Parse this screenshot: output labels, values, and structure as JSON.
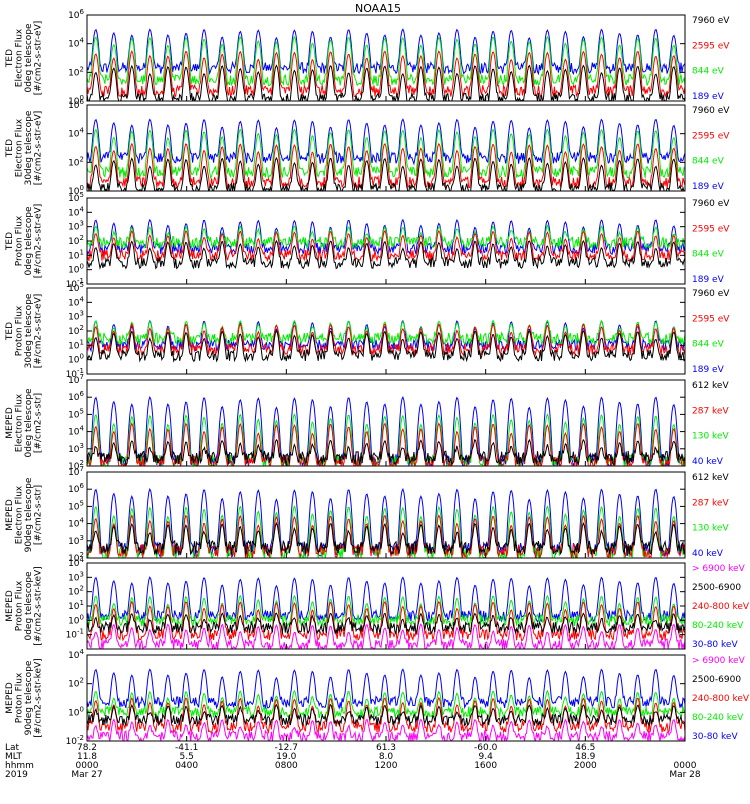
{
  "title": "NOAA15",
  "colors": {
    "black": "#000000",
    "blue": "#0000ff",
    "red": "#ff0000",
    "green": "#00ee00",
    "magenta": "#ff00ff"
  },
  "chart_data": [
    {
      "type": "line",
      "ylabel_lines": [
        "TED",
        "Electron Flux",
        "0deg telescope",
        "[#/cm2-s-str-eV]"
      ],
      "y_scale": "log",
      "ylim": [
        1,
        1000000
      ],
      "yticks": [
        {
          "value": 1,
          "label": "10^0"
        },
        {
          "value": 100,
          "label": "10^2"
        },
        {
          "value": 10000,
          "label": "10^4"
        },
        {
          "value": 1000000,
          "label": "10^6"
        }
      ],
      "legend": [
        {
          "name": "7960 eV",
          "color": "#000000"
        },
        {
          "name": "2595 eV",
          "color": "#ff0000"
        },
        {
          "name": "844 eV",
          "color": "#00ee00"
        },
        {
          "name": "189 eV",
          "color": "#0000ff"
        }
      ],
      "series": [
        {
          "name": "189 eV",
          "color": "#0000ff",
          "baseline": 200,
          "peak": 100000
        },
        {
          "name": "844 eV",
          "color": "#00ee00",
          "baseline": 30,
          "peak": 30000
        },
        {
          "name": "2595 eV",
          "color": "#ff0000",
          "baseline": 5,
          "peak": 3000
        },
        {
          "name": "7960 eV",
          "color": "#000000",
          "baseline": 1.5,
          "peak": 300
        }
      ]
    },
    {
      "type": "line",
      "ylabel_lines": [
        "TED",
        "Electron Flux",
        "30deg telescope",
        "[#/cm2-s-str-eV]"
      ],
      "y_scale": "log",
      "ylim": [
        1,
        1000000
      ],
      "yticks": [
        {
          "value": 1,
          "label": "10^0"
        },
        {
          "value": 100,
          "label": "10^2"
        },
        {
          "value": 10000,
          "label": "10^4"
        },
        {
          "value": 1000000,
          "label": "10^6"
        }
      ],
      "legend": [
        {
          "name": "7960 eV",
          "color": "#000000"
        },
        {
          "name": "2595 eV",
          "color": "#ff0000"
        },
        {
          "name": "844 eV",
          "color": "#00ee00"
        },
        {
          "name": "189 eV",
          "color": "#0000ff"
        }
      ],
      "series": [
        {
          "name": "189 eV",
          "color": "#0000ff",
          "baseline": 200,
          "peak": 100000
        },
        {
          "name": "844 eV",
          "color": "#00ee00",
          "baseline": 20,
          "peak": 20000
        },
        {
          "name": "2595 eV",
          "color": "#ff0000",
          "baseline": 4,
          "peak": 2000
        },
        {
          "name": "7960 eV",
          "color": "#000000",
          "baseline": 1.5,
          "peak": 200
        }
      ]
    },
    {
      "type": "line",
      "ylabel_lines": [
        "TED",
        "Proton Flux",
        "0deg telescope",
        "[#/cm2-s-str-eV]"
      ],
      "y_scale": "log",
      "ylim": [
        0.1,
        100000
      ],
      "yticks": [
        {
          "value": 0.1,
          "label": "10^-1"
        },
        {
          "value": 1,
          "label": "10^0"
        },
        {
          "value": 10,
          "label": "10^1"
        },
        {
          "value": 100,
          "label": "10^2"
        },
        {
          "value": 1000,
          "label": "10^3"
        },
        {
          "value": 10000,
          "label": "10^4"
        },
        {
          "value": 100000,
          "label": "10^5"
        }
      ],
      "legend": [
        {
          "name": "7960 eV",
          "color": "#000000"
        },
        {
          "name": "2595 eV",
          "color": "#ff0000"
        },
        {
          "name": "844 eV",
          "color": "#00ee00"
        },
        {
          "name": "189 eV",
          "color": "#0000ff"
        }
      ],
      "series": [
        {
          "name": "189 eV",
          "color": "#0000ff",
          "baseline": 30,
          "peak": 3000
        },
        {
          "name": "844 eV",
          "color": "#00ee00",
          "baseline": 80,
          "peak": 1000
        },
        {
          "name": "2595 eV",
          "color": "#ff0000",
          "baseline": 10,
          "peak": 500
        },
        {
          "name": "7960 eV",
          "color": "#000000",
          "baseline": 3,
          "peak": 100
        }
      ]
    },
    {
      "type": "line",
      "ylabel_lines": [
        "TED",
        "Proton Flux",
        "30deg telescope",
        "[#/cm2-s-str-eV]"
      ],
      "y_scale": "log",
      "ylim": [
        0.1,
        100000
      ],
      "yticks": [
        {
          "value": 0.1,
          "label": "10^-1"
        },
        {
          "value": 1,
          "label": "10^0"
        },
        {
          "value": 10,
          "label": "10^1"
        },
        {
          "value": 100,
          "label": "10^2"
        },
        {
          "value": 1000,
          "label": "10^3"
        },
        {
          "value": 10000,
          "label": "10^4"
        },
        {
          "value": 100000,
          "label": "10^5"
        }
      ],
      "legend": [
        {
          "name": "7960 eV",
          "color": "#000000"
        },
        {
          "name": "2595 eV",
          "color": "#ff0000"
        },
        {
          "name": "844 eV",
          "color": "#00ee00"
        },
        {
          "name": "189 eV",
          "color": "#0000ff"
        }
      ],
      "series": [
        {
          "name": "189 eV",
          "color": "#0000ff",
          "baseline": 10,
          "peak": 500
        },
        {
          "name": "844 eV",
          "color": "#00ee00",
          "baseline": 30,
          "peak": 500
        },
        {
          "name": "2595 eV",
          "color": "#ff0000",
          "baseline": 5,
          "peak": 300
        },
        {
          "name": "7960 eV",
          "color": "#000000",
          "baseline": 2,
          "peak": 100
        }
      ]
    },
    {
      "type": "line",
      "ylabel_lines": [
        "MEPED",
        "Electron Flux",
        "0deg telescope",
        "[#/cm2-s-str]"
      ],
      "y_scale": "log",
      "ylim": [
        100,
        10000000
      ],
      "yticks": [
        {
          "value": 100,
          "label": "10^2"
        },
        {
          "value": 1000,
          "label": "10^3"
        },
        {
          "value": 10000,
          "label": "10^4"
        },
        {
          "value": 100000,
          "label": "10^5"
        },
        {
          "value": 1000000,
          "label": "10^6"
        },
        {
          "value": 10000000,
          "label": "10^7"
        }
      ],
      "legend": [
        {
          "name": "612 keV",
          "color": "#000000"
        },
        {
          "name": "287 keV",
          "color": "#ff0000"
        },
        {
          "name": "130 keV",
          "color": "#00ee00"
        },
        {
          "name": "40 keV",
          "color": "#0000ff"
        }
      ],
      "series": [
        {
          "name": "40 keV",
          "color": "#0000ff",
          "baseline": 200,
          "peak": 1000000
        },
        {
          "name": "130 keV",
          "color": "#00ee00",
          "baseline": 180,
          "peak": 100000
        },
        {
          "name": "287 keV",
          "color": "#ff0000",
          "baseline": 170,
          "peak": 30000
        },
        {
          "name": "612 keV",
          "color": "#000000",
          "baseline": 300,
          "peak": 3000
        }
      ]
    },
    {
      "type": "line",
      "ylabel_lines": [
        "MEPED",
        "Electron Flux",
        "90deg telescope",
        "[#/cm2-s-str]"
      ],
      "y_scale": "log",
      "ylim": [
        100,
        10000000
      ],
      "yticks": [
        {
          "value": 100,
          "label": "10^2"
        },
        {
          "value": 1000,
          "label": "10^3"
        },
        {
          "value": 10000,
          "label": "10^4"
        },
        {
          "value": 100000,
          "label": "10^5"
        },
        {
          "value": 1000000,
          "label": "10^6"
        },
        {
          "value": 10000000,
          "label": "10^7"
        }
      ],
      "legend": [
        {
          "name": "612 keV",
          "color": "#000000"
        },
        {
          "name": "287 keV",
          "color": "#ff0000"
        },
        {
          "name": "130 keV",
          "color": "#00ee00"
        },
        {
          "name": "40 keV",
          "color": "#0000ff"
        }
      ],
      "series": [
        {
          "name": "40 keV",
          "color": "#0000ff",
          "baseline": 300,
          "peak": 1000000
        },
        {
          "name": "130 keV",
          "color": "#00ee00",
          "baseline": 180,
          "peak": 100000
        },
        {
          "name": "287 keV",
          "color": "#ff0000",
          "baseline": 250,
          "peak": 30000
        },
        {
          "name": "612 keV",
          "color": "#000000",
          "baseline": 400,
          "peak": 10000
        }
      ]
    },
    {
      "type": "line",
      "ylabel_lines": [
        "MEPED",
        "Proton Flux",
        "0deg telescope",
        "[#/cm2-s-str-keV]"
      ],
      "y_scale": "log",
      "ylim": [
        0.01,
        10000
      ],
      "yticks": [
        {
          "value": 0.1,
          "label": "10^-1"
        },
        {
          "value": 1,
          "label": "10^0"
        },
        {
          "value": 10,
          "label": "10^1"
        },
        {
          "value": 100,
          "label": "10^2"
        },
        {
          "value": 1000,
          "label": "10^3"
        },
        {
          "value": 10000,
          "label": "10^4"
        }
      ],
      "legend": [
        {
          "name": "> 6900 keV",
          "color": "#ff00ff"
        },
        {
          "name": "2500-6900",
          "color": "#000000"
        },
        {
          "name": "240-800 keV",
          "color": "#ff0000"
        },
        {
          "name": "80-240 keV",
          "color": "#00ee00"
        },
        {
          "name": "30-80 keV",
          "color": "#0000ff"
        }
      ],
      "series": [
        {
          "name": "30-80 keV",
          "color": "#0000ff",
          "baseline": 2,
          "peak": 1000
        },
        {
          "name": "80-240 keV",
          "color": "#00ee00",
          "baseline": 1,
          "peak": 50
        },
        {
          "name": "240-800 keV",
          "color": "#ff0000",
          "baseline": 0.1,
          "peak": 20
        },
        {
          "name": "2500-6900",
          "color": "#000000",
          "baseline": 0.3,
          "peak": 3
        },
        {
          "name": "> 6900 keV",
          "color": "#ff00ff",
          "baseline": 0.02,
          "peak": 0.5
        }
      ]
    },
    {
      "type": "line",
      "ylabel_lines": [
        "MEPED",
        "Proton Flux",
        "90deg telescope",
        "[#/cm2-s-str-keV]"
      ],
      "y_scale": "log",
      "ylim": [
        0.01,
        10000
      ],
      "yticks": [
        {
          "value": 0.01,
          "label": "10^-2"
        },
        {
          "value": 1,
          "label": "10^0"
        },
        {
          "value": 100,
          "label": "10^2"
        },
        {
          "value": 10000,
          "label": "10^4"
        }
      ],
      "legend": [
        {
          "name": "> 6900 keV",
          "color": "#ff00ff"
        },
        {
          "name": "2500-6900",
          "color": "#000000"
        },
        {
          "name": "240-800 keV",
          "color": "#ff0000"
        },
        {
          "name": "80-240 keV",
          "color": "#00ee00"
        },
        {
          "name": "30-80 keV",
          "color": "#0000ff"
        }
      ],
      "series": [
        {
          "name": "30-80 keV",
          "color": "#0000ff",
          "baseline": 5,
          "peak": 1000
        },
        {
          "name": "80-240 keV",
          "color": "#00ee00",
          "baseline": 1,
          "peak": 30
        },
        {
          "name": "240-800 keV",
          "color": "#ff0000",
          "baseline": 0.1,
          "peak": 10
        },
        {
          "name": "2500-6900",
          "color": "#000000",
          "baseline": 0.3,
          "peak": 3
        },
        {
          "name": "> 6900 keV",
          "color": "#ff00ff",
          "baseline": 0.02,
          "peak": 0.3
        }
      ]
    }
  ],
  "time_axis": {
    "row_labels": [
      "Lat",
      "MLT",
      "hhmm",
      "2019"
    ],
    "ticks": [
      {
        "hour": 0,
        "lat": "78.2",
        "mlt": "11.8",
        "hhmm": "0000",
        "date": "Mar 27"
      },
      {
        "hour": 4,
        "lat": "-41.1",
        "mlt": "5.5",
        "hhmm": "0400",
        "date": ""
      },
      {
        "hour": 8,
        "lat": "-12.7",
        "mlt": "19.0",
        "hhmm": "0800",
        "date": ""
      },
      {
        "hour": 12,
        "lat": "61.3",
        "mlt": "8.0",
        "hhmm": "1200",
        "date": ""
      },
      {
        "hour": 16,
        "lat": "-60.0",
        "mlt": "9.4",
        "hhmm": "1600",
        "date": ""
      },
      {
        "hour": 20,
        "lat": "46.5",
        "mlt": "18.9",
        "hhmm": "2000",
        "date": ""
      },
      {
        "hour": 24,
        "lat": "",
        "mlt": "",
        "hhmm": "0000",
        "date": "Mar 28"
      }
    ]
  }
}
